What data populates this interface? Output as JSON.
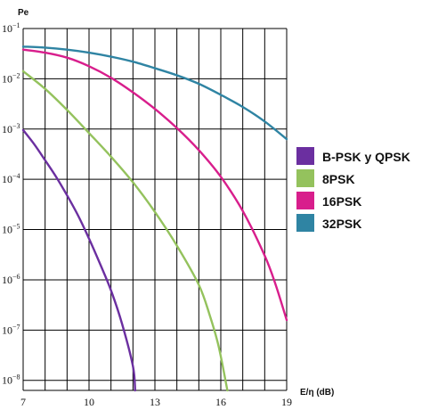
{
  "chart_data": {
    "type": "line",
    "title": "",
    "ylabel": "Pe",
    "xlabel": "E/η (dB)",
    "xlim": [
      7,
      19
    ],
    "y_log_exponent_range": [
      -8.2,
      -1
    ],
    "y_scale": "log",
    "grid": true,
    "legend_position": "right",
    "x_ticks": [
      {
        "value": 7,
        "label": "7"
      },
      {
        "value": 10,
        "label": "10"
      },
      {
        "value": 13,
        "label": "13"
      },
      {
        "value": 16,
        "label": "16"
      },
      {
        "value": 19,
        "label": "19"
      }
    ],
    "y_ticks": [
      {
        "exp": -1,
        "base": "10",
        "sup": "−1"
      },
      {
        "exp": -2,
        "base": "10",
        "sup": "−2"
      },
      {
        "exp": -3,
        "base": "10",
        "sup": "−3"
      },
      {
        "exp": -4,
        "base": "10",
        "sup": "−4"
      },
      {
        "exp": -5,
        "base": "10",
        "sup": "−5"
      },
      {
        "exp": -6,
        "base": "10",
        "sup": "−6"
      },
      {
        "exp": -7,
        "base": "10",
        "sup": "−7"
      },
      {
        "exp": -8,
        "base": "10",
        "sup": "−8"
      }
    ],
    "series": [
      {
        "name": "B-PSK y QPSK",
        "color": "#6b2fa0",
        "points": [
          [
            7,
            -3.02
          ],
          [
            7.5,
            -3.3
          ],
          [
            8,
            -3.62
          ],
          [
            8.5,
            -3.95
          ],
          [
            9,
            -4.32
          ],
          [
            9.5,
            -4.72
          ],
          [
            10,
            -5.18
          ],
          [
            10.5,
            -5.68
          ],
          [
            11,
            -6.21
          ],
          [
            11.5,
            -6.87
          ],
          [
            12,
            -7.72
          ],
          [
            12.1,
            -8.2
          ]
        ]
      },
      {
        "name": "8PSK",
        "color": "#94c25d",
        "points": [
          [
            7,
            -1.85
          ],
          [
            8,
            -2.2
          ],
          [
            9,
            -2.62
          ],
          [
            10,
            -3.08
          ],
          [
            11,
            -3.55
          ],
          [
            12,
            -4.06
          ],
          [
            13,
            -4.65
          ],
          [
            14,
            -5.32
          ],
          [
            15,
            -6.1
          ],
          [
            15.5,
            -6.71
          ],
          [
            15.9,
            -7.32
          ],
          [
            16.3,
            -8.2
          ]
        ]
      },
      {
        "name": "16PSK",
        "color": "#d81e8c",
        "points": [
          [
            7,
            -1.42
          ],
          [
            8,
            -1.48
          ],
          [
            9,
            -1.58
          ],
          [
            10,
            -1.75
          ],
          [
            11,
            -1.98
          ],
          [
            12,
            -2.27
          ],
          [
            13,
            -2.6
          ],
          [
            14,
            -2.98
          ],
          [
            15,
            -3.42
          ],
          [
            16,
            -3.95
          ],
          [
            17,
            -4.63
          ],
          [
            18,
            -5.52
          ],
          [
            18.5,
            -6.1
          ],
          [
            19,
            -6.8
          ]
        ]
      },
      {
        "name": "32PSK",
        "color": "#2f84a3",
        "points": [
          [
            7,
            -1.36
          ],
          [
            8,
            -1.38
          ],
          [
            9,
            -1.42
          ],
          [
            10,
            -1.48
          ],
          [
            11,
            -1.56
          ],
          [
            12,
            -1.66
          ],
          [
            13,
            -1.79
          ],
          [
            14,
            -1.93
          ],
          [
            15,
            -2.1
          ],
          [
            16,
            -2.32
          ],
          [
            17,
            -2.56
          ],
          [
            18,
            -2.85
          ],
          [
            19,
            -3.2
          ]
        ]
      }
    ]
  }
}
